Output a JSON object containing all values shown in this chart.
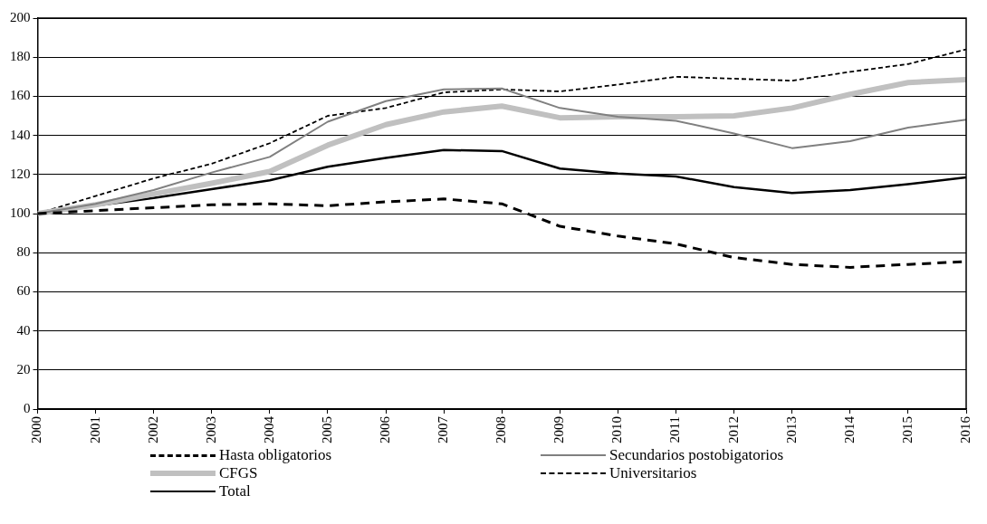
{
  "chart_data": {
    "type": "line",
    "x": [
      2000,
      2001,
      2002,
      2003,
      2004,
      2005,
      2006,
      2007,
      2008,
      2009,
      2010,
      2011,
      2012,
      2013,
      2014,
      2015,
      2016
    ],
    "xlim": [
      2000,
      2016
    ],
    "xticks": [
      2000,
      2001,
      2002,
      2003,
      2004,
      2005,
      2006,
      2007,
      2008,
      2009,
      2010,
      2011,
      2012,
      2013,
      2014,
      2015,
      2016
    ],
    "ylim": [
      0,
      200
    ],
    "yticks": [
      0,
      20,
      40,
      60,
      80,
      100,
      120,
      140,
      160,
      180,
      200
    ],
    "grid": "y",
    "legend": "bottom",
    "marker": "none",
    "series": [
      {
        "name": "Hasta obligatorios",
        "color": "#000000",
        "line_style": "dashed",
        "values": [
          100,
          101.5,
          103,
          104.5,
          105,
          104,
          106,
          107.5,
          105,
          93.5,
          88.5,
          84.5,
          77.5,
          74,
          72.5,
          74,
          75.5
        ]
      },
      {
        "name": "Secundarios postobigatorios",
        "color": "#808080",
        "line_style": "solid",
        "values": [
          100,
          105,
          112,
          121,
          129,
          147,
          157.5,
          163.5,
          164,
          154,
          149.5,
          147.5,
          141,
          133.5,
          137,
          144,
          148
        ]
      },
      {
        "name": "CFGS",
        "color": "#c0c0c0",
        "line_style": "solid",
        "values": [
          100,
          104.5,
          110,
          115.5,
          121.5,
          135,
          145.5,
          152,
          155,
          149,
          149.5,
          149.5,
          150,
          154,
          161,
          167,
          168.5
        ]
      },
      {
        "name": "Universitarios",
        "color": "#000000",
        "line_style": "dotted",
        "values": [
          100,
          109,
          118,
          125.5,
          136,
          150,
          154,
          162,
          163.5,
          162.5,
          166,
          170,
          169,
          168,
          172.5,
          176.5,
          184
        ]
      },
      {
        "name": "Total",
        "color": "#000000",
        "line_style": "solid",
        "values": [
          100,
          104,
          108,
          112.5,
          117,
          124,
          128.5,
          132.5,
          132,
          123,
          120.5,
          119,
          113.5,
          110.5,
          112,
          115,
          118.5
        ]
      }
    ]
  }
}
